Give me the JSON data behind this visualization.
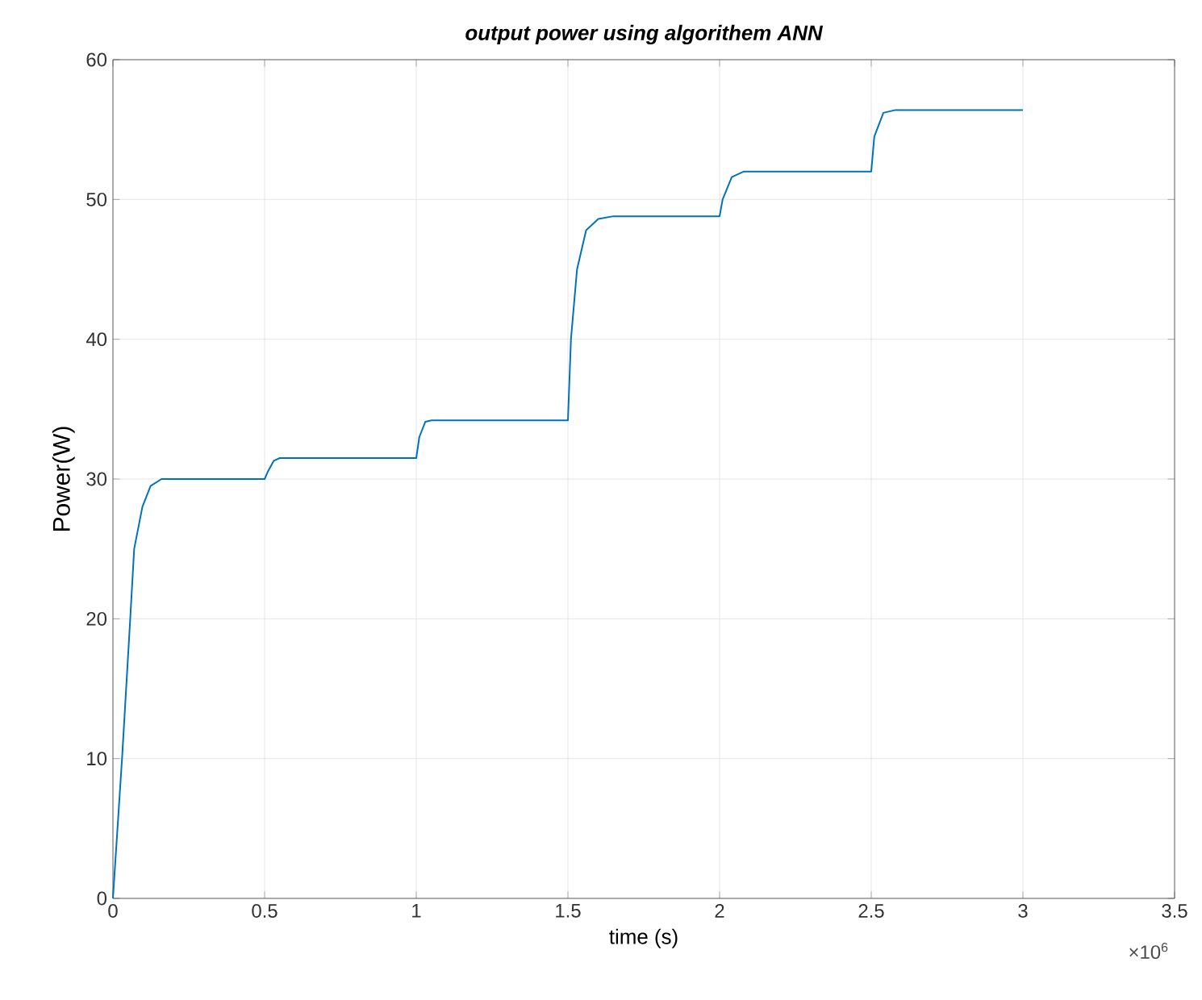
{
  "chart_data": {
    "type": "line",
    "title": "output power using algorithem ANN",
    "xlabel": "time (s)",
    "ylabel": "Power(W)",
    "x": [
      0,
      0.015,
      0.03,
      0.057,
      0.07,
      0.097,
      0.124,
      0.16,
      0.5,
      0.51,
      0.53,
      0.55,
      1.0,
      1.01,
      1.03,
      1.05,
      1.5,
      1.51,
      1.53,
      1.56,
      1.6,
      1.65,
      2.0,
      2.01,
      2.04,
      2.08,
      2.5,
      2.51,
      2.54,
      2.58,
      3.0
    ],
    "series": [
      {
        "color": "#0072bd",
        "values": [
          0,
          5,
          10,
          20,
          25,
          28,
          29.5,
          30,
          30,
          30.5,
          31.3,
          31.5,
          31.5,
          33,
          34.1,
          34.2,
          34.2,
          40,
          45,
          47.8,
          48.6,
          48.8,
          48.8,
          50,
          51.6,
          52,
          52,
          54.5,
          56.2,
          56.4,
          56.4
        ]
      }
    ],
    "xlim": [
      0,
      3.5
    ],
    "ylim": [
      0,
      60
    ],
    "xticks": [
      0,
      0.5,
      1,
      1.5,
      2,
      2.5,
      3,
      3.5
    ],
    "yticks": [
      0,
      10,
      20,
      30,
      40,
      50,
      60
    ],
    "annotations": [
      "×10$^{6}$"
    ],
    "grid": true,
    "marker": "none",
    "line_style": "solid"
  }
}
